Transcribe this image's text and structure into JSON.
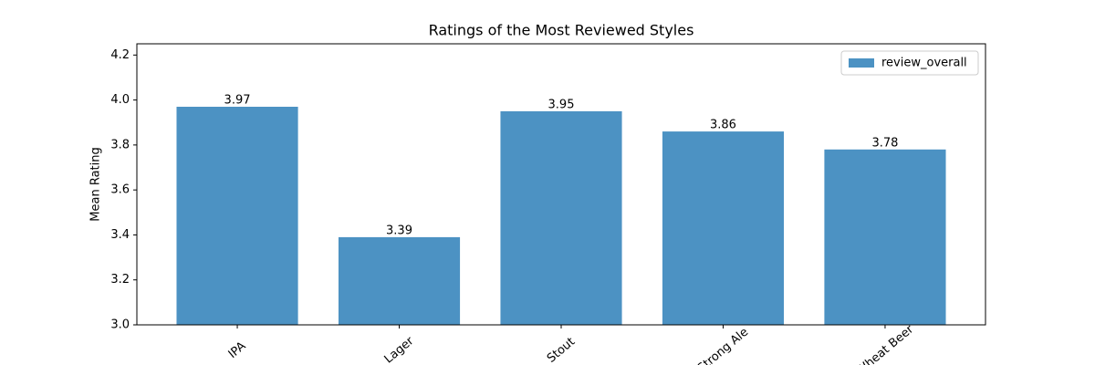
{
  "chart_data": {
    "type": "bar",
    "title": "Ratings of the Most Reviewed Styles",
    "ylabel": "Mean Rating",
    "categories": [
      "IPA",
      "Lager",
      "Stout",
      "Strong Ale",
      "Wheat Beer"
    ],
    "series": [
      {
        "name": "review_overall",
        "color": "#4c92c3",
        "values": [
          3.97,
          3.39,
          3.95,
          3.86,
          3.78
        ]
      }
    ],
    "ylim": [
      3.0,
      4.25
    ],
    "yticks": [
      {
        "value": 3.0,
        "label": "3.0"
      },
      3.2,
      3.4,
      3.6,
      3.8,
      {
        "value": 4.0,
        "label": "4.0"
      },
      4.2
    ],
    "legend": "upper right",
    "value_labels_shown": true
  }
}
